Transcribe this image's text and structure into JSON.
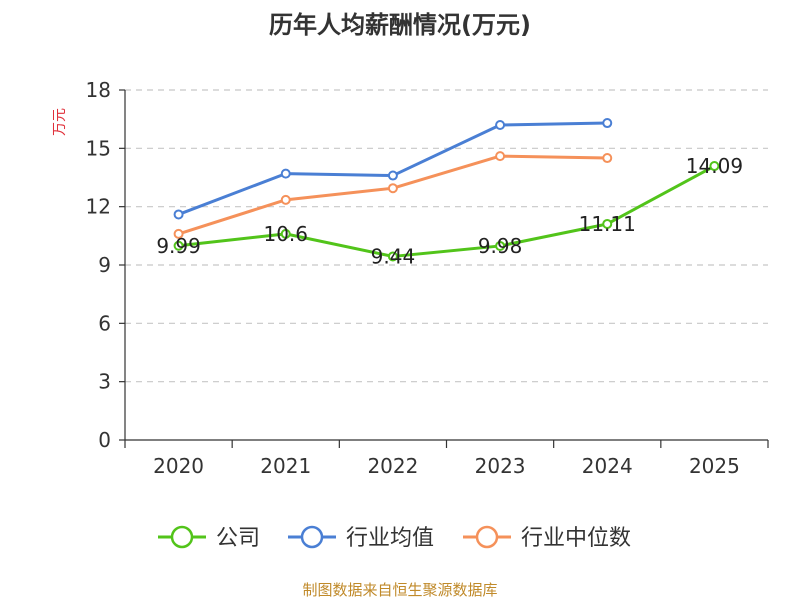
{
  "chart_data": {
    "type": "line",
    "title": "历年人均薪酬情况(万元)",
    "xlabel": "",
    "ylabel": "万元",
    "categories": [
      "2020",
      "2021",
      "2022",
      "2023",
      "2024",
      "2025"
    ],
    "ylim": [
      0,
      18
    ],
    "yticks": [
      0,
      3,
      6,
      9,
      12,
      15,
      18
    ],
    "grid": true,
    "legend_position": "bottom",
    "series": [
      {
        "name": "公司",
        "color": "#52c41a",
        "values": [
          9.99,
          10.6,
          9.44,
          9.98,
          11.11,
          14.09
        ],
        "labels": [
          "9.99",
          "10.6",
          "9.44",
          "9.98",
          "11.11",
          "14.09"
        ]
      },
      {
        "name": "行业均值",
        "color": "#4a7fd4",
        "values": [
          11.6,
          13.7,
          13.6,
          16.2,
          16.3,
          null
        ],
        "labels": []
      },
      {
        "name": "行业中位数",
        "color": "#f5915a",
        "values": [
          10.6,
          12.35,
          12.95,
          14.6,
          14.5,
          null
        ],
        "labels": []
      }
    ]
  },
  "colors": {
    "ylabel": "#e0303a",
    "source": "#c08a2a",
    "axis": "#333333",
    "grid": "#c8c8c8"
  },
  "source_text": "制图数据来自恒生聚源数据库"
}
